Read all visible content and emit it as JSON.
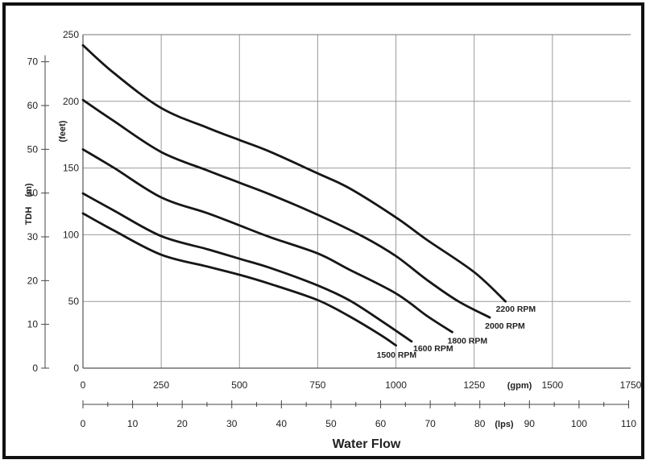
{
  "chart_data": {
    "type": "line",
    "title": "",
    "x_axes": {
      "gpm": {
        "unit_label": "(gpm)",
        "range": [
          0,
          1750
        ],
        "ticks": [
          "0",
          "250",
          "500",
          "750",
          "1000",
          "1250",
          "1500",
          "1750"
        ]
      },
      "lps": {
        "unit_label": "(lps)",
        "range": [
          0,
          110
        ],
        "ticks": [
          "0",
          "10",
          "20",
          "30",
          "40",
          "50",
          "60",
          "70",
          "80",
          "90",
          "100",
          "110"
        ]
      },
      "title": "Water Flow"
    },
    "y_axes": {
      "feet": {
        "unit_label": "(feet)",
        "range": [
          0,
          250
        ],
        "ticks": [
          "0",
          "50",
          "100",
          "150",
          "200",
          "250"
        ]
      },
      "m": {
        "unit_label": "(m)",
        "range": [
          0,
          75
        ],
        "ticks": [
          "0",
          "10",
          "20",
          "30",
          "40",
          "50",
          "60",
          "70"
        ]
      },
      "title": "TDH"
    },
    "grid": true,
    "series": [
      {
        "name": "2200 RPM",
        "x_gpm": [
          0,
          100,
          250,
          400,
          500,
          600,
          750,
          850,
          1000,
          1100,
          1250,
          1350
        ],
        "y_feet": [
          242,
          221,
          195,
          180,
          171,
          162,
          146,
          135,
          113,
          96,
          72,
          50
        ]
      },
      {
        "name": "2000 RPM",
        "x_gpm": [
          0,
          100,
          250,
          400,
          500,
          600,
          750,
          900,
          1000,
          1100,
          1200,
          1300
        ],
        "y_feet": [
          201,
          185,
          162,
          148,
          139,
          130,
          115,
          98,
          84,
          66,
          50,
          38
        ]
      },
      {
        "name": "1800 RPM",
        "x_gpm": [
          0,
          100,
          250,
          400,
          500,
          600,
          750,
          850,
          1000,
          1100,
          1180
        ],
        "y_feet": [
          164,
          150,
          128,
          116,
          107,
          98,
          86,
          74,
          56,
          39,
          27
        ]
      },
      {
        "name": "1600 RPM",
        "x_gpm": [
          0,
          100,
          250,
          400,
          500,
          600,
          750,
          850,
          950,
          1050
        ],
        "y_feet": [
          131,
          118,
          99,
          89,
          82,
          75,
          62,
          51,
          36,
          20
        ]
      },
      {
        "name": "1500 RPM",
        "x_gpm": [
          0,
          100,
          250,
          400,
          500,
          600,
          750,
          850,
          950,
          1000
        ],
        "y_feet": [
          116,
          103,
          85,
          76,
          70,
          63,
          51,
          39,
          25,
          17
        ]
      }
    ]
  }
}
